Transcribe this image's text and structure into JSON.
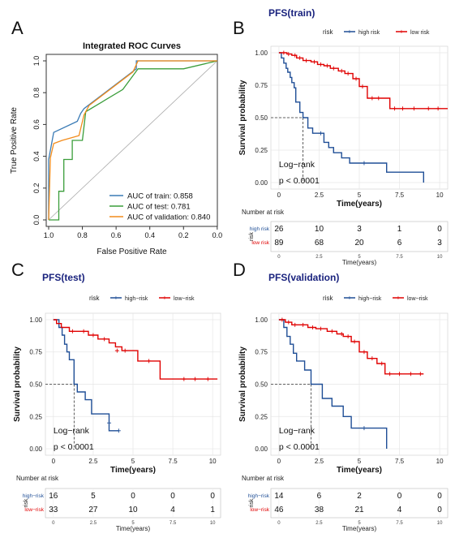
{
  "panels": [
    {
      "letter": "A"
    },
    {
      "letter": "B"
    },
    {
      "letter": "C"
    },
    {
      "letter": "D"
    }
  ],
  "chart_data": [
    {
      "type": "line",
      "title": "Integrated  ROC Curves",
      "xlabel": "False Positive Rate",
      "ylabel": "True Positive Rate",
      "xlim": [
        1.0,
        0.0
      ],
      "ylim": [
        0,
        1
      ],
      "xticks": [
        "1.0",
        "0.8",
        "0.6",
        "0.4",
        "0.2",
        "0.0"
      ],
      "yticks": [
        "0.0",
        "0.2",
        "0.4",
        "0.6",
        "0.8",
        "1.0"
      ],
      "legend": "bottom-right",
      "series": [
        {
          "name": "AUC of train: 0.858",
          "color": "#3a7bb5",
          "x": [
            1.0,
            1.0,
            0.97,
            0.83,
            0.81,
            0.79,
            0.48,
            0.48,
            0.0
          ],
          "y": [
            0.0,
            0.38,
            0.55,
            0.62,
            0.67,
            0.7,
            0.95,
            1.0,
            1.0
          ]
        },
        {
          "name": "AUC of test: 0.781",
          "color": "#3a9d3a",
          "x": [
            1.0,
            0.97,
            0.94,
            0.94,
            0.91,
            0.91,
            0.86,
            0.86,
            0.8,
            0.78,
            0.56,
            0.47,
            0.2,
            0.0
          ],
          "y": [
            0.0,
            0.0,
            0.0,
            0.18,
            0.18,
            0.38,
            0.38,
            0.5,
            0.5,
            0.68,
            0.82,
            0.95,
            0.95,
            1.0
          ]
        },
        {
          "name": "AUC of validation: 0.840",
          "color": "#f28c1b",
          "x": [
            1.0,
            0.99,
            0.97,
            0.92,
            0.82,
            0.79,
            0.76,
            0.5,
            0.47,
            0.0
          ],
          "y": [
            0.0,
            0.39,
            0.48,
            0.5,
            0.53,
            0.66,
            0.72,
            0.93,
            1.0,
            1.0
          ]
        }
      ]
    },
    {
      "type": "line",
      "title": "PFS(train)",
      "xlabel": "Time(years)",
      "ylabel": "Survival probability",
      "xlim": [
        -0.5,
        10.5
      ],
      "ylim": [
        -0.05,
        1.05
      ],
      "xticks": [
        "0",
        "2.5",
        "5",
        "7.5",
        "10"
      ],
      "yticks": [
        "0.00",
        "0.25",
        "0.50",
        "0.75",
        "1.00"
      ],
      "legend_title": "risk",
      "legend": "top",
      "annotation": [
        "Log−rank",
        "p < 0.0001"
      ],
      "median": 1.5,
      "series": [
        {
          "name": "high risk",
          "color": "#1f4e96",
          "x": [
            0,
            0.15,
            0.3,
            0.45,
            0.55,
            0.7,
            0.8,
            0.95,
            1.05,
            1.3,
            1.5,
            1.8,
            2.1,
            2.4,
            2.8,
            3.1,
            3.4,
            3.9,
            4.4,
            5.0,
            5.5,
            6.7,
            9.0
          ],
          "y": [
            1.0,
            0.96,
            0.92,
            0.88,
            0.85,
            0.81,
            0.77,
            0.73,
            0.62,
            0.54,
            0.5,
            0.42,
            0.38,
            0.38,
            0.31,
            0.27,
            0.23,
            0.19,
            0.15,
            0.15,
            0.15,
            0.08,
            0.0
          ],
          "censor": [
            [
              2.6,
              0.38
            ],
            [
              5.3,
              0.15
            ]
          ]
        },
        {
          "name": "low risk",
          "color": "#e00000",
          "x": [
            0,
            0.5,
            0.8,
            1.1,
            1.5,
            2.0,
            2.4,
            2.8,
            3.2,
            3.7,
            4.1,
            4.6,
            5.0,
            5.5,
            6.5,
            6.9,
            8.0,
            10.5
          ],
          "y": [
            1.0,
            0.99,
            0.98,
            0.96,
            0.94,
            0.93,
            0.91,
            0.9,
            0.88,
            0.86,
            0.84,
            0.8,
            0.74,
            0.65,
            0.65,
            0.57,
            0.57,
            0.57
          ],
          "censor": [
            [
              0.3,
              1.0
            ],
            [
              0.6,
              0.99
            ],
            [
              1.0,
              0.98
            ],
            [
              1.3,
              0.96
            ],
            [
              1.7,
              0.94
            ],
            [
              2.2,
              0.93
            ],
            [
              2.6,
              0.91
            ],
            [
              3.0,
              0.9
            ],
            [
              3.4,
              0.88
            ],
            [
              3.9,
              0.86
            ],
            [
              4.3,
              0.84
            ],
            [
              4.8,
              0.8
            ],
            [
              5.2,
              0.74
            ],
            [
              5.8,
              0.65
            ],
            [
              6.2,
              0.65
            ],
            [
              7.2,
              0.57
            ],
            [
              7.7,
              0.57
            ],
            [
              8.4,
              0.57
            ],
            [
              9.3,
              0.57
            ],
            [
              9.9,
              0.57
            ]
          ]
        }
      ],
      "risk_table": {
        "title": "Number at risk",
        "axis": "risk",
        "xlabel": "Time(years)",
        "times": [
          "0",
          "2.5",
          "5",
          "7.5",
          "10"
        ],
        "rows": [
          {
            "label": "high risk",
            "color": "#1f4e96",
            "values": [
              "26",
              "10",
              "3",
              "1",
              "0"
            ]
          },
          {
            "label": "low risk",
            "color": "#e00000",
            "values": [
              "89",
              "68",
              "20",
              "6",
              "3"
            ]
          }
        ]
      }
    },
    {
      "type": "line",
      "title": "PFS(test)",
      "xlabel": "Time(years)",
      "ylabel": "Survival probability",
      "xlim": [
        -0.5,
        10.5
      ],
      "ylim": [
        -0.05,
        1.05
      ],
      "xticks": [
        "0",
        "2.5",
        "5",
        "7.5",
        "10"
      ],
      "yticks": [
        "0.00",
        "0.25",
        "0.50",
        "0.75",
        "1.00"
      ],
      "legend_title": "risk",
      "legend": "top",
      "annotation": [
        "Log−rank",
        "p < 0.0001"
      ],
      "median": 1.3,
      "series": [
        {
          "name": "high−risk",
          "color": "#1f4e96",
          "x": [
            0,
            0.35,
            0.55,
            0.7,
            0.85,
            1.0,
            1.3,
            1.5,
            2.0,
            2.4,
            3.1,
            3.5,
            4.1
          ],
          "y": [
            1.0,
            0.94,
            0.88,
            0.81,
            0.75,
            0.69,
            0.5,
            0.44,
            0.38,
            0.27,
            0.27,
            0.14,
            0.14
          ],
          "censor": [
            [
              3.5,
              0.2
            ],
            [
              4.1,
              0.14
            ]
          ]
        },
        {
          "name": "low−risk",
          "color": "#e00000",
          "x": [
            0,
            0.2,
            0.5,
            1.0,
            1.5,
            2.2,
            2.8,
            3.5,
            3.9,
            4.3,
            5.3,
            6.7,
            10.3
          ],
          "y": [
            1.0,
            0.97,
            0.94,
            0.91,
            0.91,
            0.88,
            0.85,
            0.82,
            0.79,
            0.76,
            0.68,
            0.54,
            0.54
          ],
          "censor": [
            [
              1.2,
              0.91
            ],
            [
              1.9,
              0.91
            ],
            [
              2.5,
              0.88
            ],
            [
              3.2,
              0.85
            ],
            [
              4.0,
              0.76
            ],
            [
              4.5,
              0.76
            ],
            [
              6.0,
              0.68
            ],
            [
              8.2,
              0.54
            ],
            [
              8.9,
              0.54
            ],
            [
              9.7,
              0.54
            ]
          ]
        }
      ],
      "risk_table": {
        "title": "Number at risk",
        "axis": "risk",
        "xlabel": "Time(years)",
        "times": [
          "0",
          "2.5",
          "5",
          "7.5",
          "10"
        ],
        "rows": [
          {
            "label": "high−risk",
            "color": "#1f4e96",
            "values": [
              "16",
              "5",
              "0",
              "0",
              "0"
            ]
          },
          {
            "label": "low−risk",
            "color": "#e00000",
            "values": [
              "33",
              "27",
              "10",
              "4",
              "1"
            ]
          }
        ]
      }
    },
    {
      "type": "line",
      "title": "PFS(validation)",
      "xlabel": "Time(years)",
      "ylabel": "Survival probability",
      "xlim": [
        -0.5,
        10.5
      ],
      "ylim": [
        -0.05,
        1.05
      ],
      "xticks": [
        "0",
        "2.5",
        "5",
        "7.5",
        "10"
      ],
      "yticks": [
        "0.00",
        "0.25",
        "0.50",
        "0.75",
        "1.00"
      ],
      "legend_title": "risk",
      "legend": "top",
      "annotation": [
        "Log−rank",
        "p < 0.0001"
      ],
      "median": 2.0,
      "series": [
        {
          "name": "high−risk",
          "color": "#1f4e96",
          "x": [
            0,
            0.3,
            0.5,
            0.7,
            0.9,
            1.1,
            1.6,
            2.0,
            2.7,
            3.3,
            4.0,
            4.5,
            5.3,
            6.7
          ],
          "y": [
            1.0,
            0.94,
            0.87,
            0.81,
            0.74,
            0.68,
            0.61,
            0.5,
            0.39,
            0.33,
            0.25,
            0.16,
            0.16,
            0.0
          ],
          "censor": [
            [
              5.3,
              0.16
            ]
          ]
        },
        {
          "name": "low−risk",
          "color": "#e00000",
          "x": [
            0,
            0.4,
            0.8,
            1.3,
            1.8,
            2.3,
            3.0,
            3.6,
            4.0,
            4.5,
            5.0,
            5.5,
            6.1,
            6.6,
            9.0
          ],
          "y": [
            1.0,
            0.98,
            0.96,
            0.96,
            0.94,
            0.93,
            0.91,
            0.89,
            0.87,
            0.83,
            0.75,
            0.7,
            0.66,
            0.58,
            0.58
          ],
          "censor": [
            [
              0.2,
              1.0
            ],
            [
              0.6,
              0.98
            ],
            [
              1.0,
              0.96
            ],
            [
              1.5,
              0.96
            ],
            [
              2.1,
              0.94
            ],
            [
              2.6,
              0.93
            ],
            [
              3.3,
              0.91
            ],
            [
              3.9,
              0.89
            ],
            [
              4.3,
              0.87
            ],
            [
              4.7,
              0.83
            ],
            [
              5.3,
              0.75
            ],
            [
              5.8,
              0.7
            ],
            [
              6.4,
              0.66
            ],
            [
              6.9,
              0.58
            ],
            [
              7.5,
              0.58
            ],
            [
              8.2,
              0.58
            ],
            [
              8.8,
              0.58
            ]
          ]
        }
      ],
      "risk_table": {
        "title": "Number at risk",
        "axis": "risk",
        "xlabel": "Time(years)",
        "times": [
          "0",
          "2.5",
          "5",
          "7.5",
          "10"
        ],
        "rows": [
          {
            "label": "high−risk",
            "color": "#1f4e96",
            "values": [
              "14",
              "6",
              "2",
              "0",
              "0"
            ]
          },
          {
            "label": "low−risk",
            "color": "#e00000",
            "values": [
              "46",
              "38",
              "21",
              "4",
              "0"
            ]
          }
        ]
      }
    }
  ]
}
